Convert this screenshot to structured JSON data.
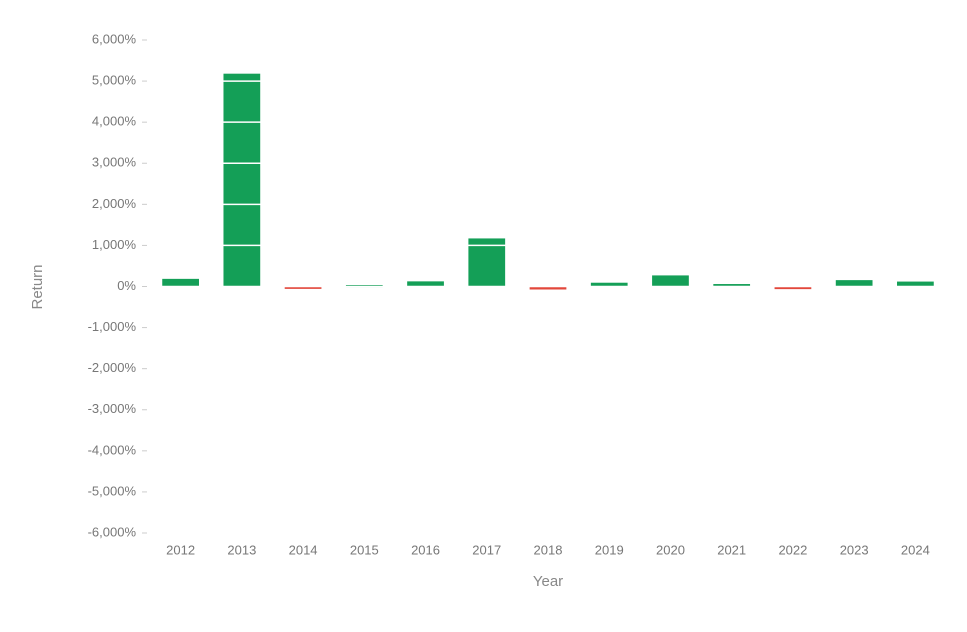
{
  "chart_data": {
    "type": "bar",
    "x_label": "Year",
    "y_label": "Return",
    "categories": [
      "2012",
      "2013",
      "2014",
      "2015",
      "2016",
      "2017",
      "2018",
      "2019",
      "2020",
      "2021",
      "2022",
      "2023",
      "2024"
    ],
    "values": [
      186,
      5180,
      -58,
      35,
      125,
      1170,
      -73,
      92,
      270,
      60,
      -64,
      155,
      120
    ],
    "positive_color": "#149f57",
    "negative_color": "#e2473b",
    "ylim": [
      -6000,
      6000
    ],
    "yticks": [
      {
        "value": 6000,
        "label": "6,000%"
      },
      {
        "value": 5000,
        "label": "5,000%"
      },
      {
        "value": 4000,
        "label": "4,000%"
      },
      {
        "value": 3000,
        "label": "3,000%"
      },
      {
        "value": 2000,
        "label": "2,000%"
      },
      {
        "value": 1000,
        "label": "1,000%"
      },
      {
        "value": 0,
        "label": "0%"
      },
      {
        "value": -1000,
        "label": "-1,000%"
      },
      {
        "value": -2000,
        "label": "-2,000%"
      },
      {
        "value": -3000,
        "label": "-3,000%"
      },
      {
        "value": -4000,
        "label": "-4,000%"
      },
      {
        "value": -5000,
        "label": "-5,000%"
      },
      {
        "value": -6000,
        "label": "-6,000%"
      }
    ],
    "grid": true
  }
}
